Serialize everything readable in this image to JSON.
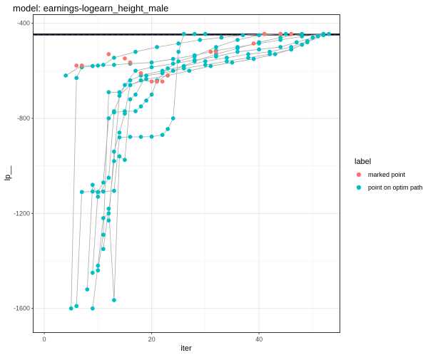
{
  "chart_data": {
    "type": "scatter",
    "title": "model: earnings-logearn_height_male",
    "xlabel": "iter",
    "ylabel": "lp__",
    "xlim": [
      -2,
      55
    ],
    "ylim": [
      -1700,
      -365
    ],
    "x_ticks": [
      0,
      20,
      40
    ],
    "y_ticks": [
      -400,
      -800,
      -1200,
      -1600
    ],
    "grid": true,
    "reference_lines": [
      {
        "y": -445,
        "color": "#000000",
        "style": "solid"
      },
      {
        "y": -447,
        "color": "#1a1aa8",
        "style": "dashed"
      },
      {
        "y": -449,
        "color": "#000000",
        "style": "solid"
      }
    ],
    "legend": {
      "title": "label",
      "position": "right",
      "entries": [
        {
          "label": "marked point",
          "color": "#F8766D"
        },
        {
          "label": "point on optim path",
          "color": "#00BFC4"
        }
      ]
    },
    "paths": [
      [
        [
          4,
          -620
        ],
        [
          7,
          -578
        ],
        [
          10,
          -578
        ],
        [
          13,
          -575
        ],
        [
          16,
          -570
        ],
        [
          20,
          -565
        ],
        [
          24,
          -550
        ],
        [
          28,
          -535
        ],
        [
          32,
          -515
        ],
        [
          36,
          -500
        ],
        [
          40,
          -485
        ],
        [
          44,
          -470
        ],
        [
          48,
          -455
        ],
        [
          52,
          -445
        ]
      ],
      [
        [
          5,
          -1600
        ],
        [
          6,
          -630
        ],
        [
          7,
          -585
        ],
        [
          9,
          -580
        ],
        [
          11,
          -575
        ],
        [
          13,
          -545
        ],
        [
          17,
          -520
        ],
        [
          21,
          -500
        ],
        [
          25,
          -485
        ],
        [
          29,
          -470
        ],
        [
          33,
          -460
        ],
        [
          37,
          -450
        ],
        [
          41,
          -445
        ],
        [
          45,
          -445
        ]
      ],
      [
        [
          6,
          -1590
        ],
        [
          7,
          -1110
        ],
        [
          9,
          -1108
        ],
        [
          11,
          -1108
        ],
        [
          13,
          -1105
        ],
        [
          14,
          -880
        ],
        [
          16,
          -878
        ],
        [
          18,
          -878
        ],
        [
          20,
          -877
        ],
        [
          22,
          -870
        ],
        [
          23,
          -845
        ],
        [
          24,
          -800
        ],
        [
          25,
          -520
        ],
        [
          26,
          -445
        ],
        [
          28,
          -445
        ],
        [
          30,
          -445
        ]
      ],
      [
        [
          8,
          -1520
        ],
        [
          9,
          -1080
        ],
        [
          10,
          -1130
        ],
        [
          12,
          -1050
        ],
        [
          13,
          -775
        ],
        [
          15,
          -770
        ],
        [
          17,
          -770
        ],
        [
          18,
          -750
        ],
        [
          19,
          -725
        ],
        [
          20,
          -700
        ],
        [
          21,
          -640
        ],
        [
          23,
          -590
        ],
        [
          25,
          -560
        ],
        [
          28,
          -540
        ],
        [
          32,
          -500
        ],
        [
          36,
          -470
        ],
        [
          40,
          -450
        ],
        [
          44,
          -445
        ]
      ],
      [
        [
          9,
          -1600
        ],
        [
          10,
          -1420
        ],
        [
          11,
          -1220
        ],
        [
          12,
          -1200
        ],
        [
          13,
          -980
        ],
        [
          14,
          -705
        ],
        [
          16,
          -660
        ],
        [
          18,
          -640
        ],
        [
          21,
          -645
        ],
        [
          24,
          -600
        ],
        [
          28,
          -560
        ],
        [
          32,
          -530
        ],
        [
          36,
          -505
        ],
        [
          40,
          -480
        ],
        [
          44,
          -460
        ],
        [
          48,
          -445
        ],
        [
          53,
          -445
        ]
      ],
      [
        [
          9,
          -1450
        ],
        [
          10,
          -1110
        ],
        [
          11,
          -1070
        ],
        [
          12,
          -800
        ],
        [
          13,
          -770
        ],
        [
          15,
          -660
        ],
        [
          17,
          -600
        ],
        [
          20,
          -585
        ],
        [
          24,
          -570
        ],
        [
          28,
          -555
        ],
        [
          32,
          -540
        ],
        [
          36,
          -520
        ],
        [
          40,
          -510
        ],
        [
          44,
          -500
        ],
        [
          47,
          -480
        ],
        [
          50,
          -460
        ],
        [
          52,
          -445
        ]
      ],
      [
        [
          10,
          -1440
        ],
        [
          11,
          -1290
        ],
        [
          12,
          -690
        ],
        [
          14,
          -690
        ],
        [
          16,
          -640
        ],
        [
          18,
          -620
        ],
        [
          22,
          -600
        ],
        [
          26,
          -580
        ],
        [
          30,
          -560
        ],
        [
          34,
          -545
        ],
        [
          38,
          -530
        ],
        [
          42,
          -520
        ],
        [
          46,
          -500
        ],
        [
          49,
          -475
        ],
        [
          51,
          -455
        ]
      ],
      [
        [
          11,
          -1350
        ],
        [
          12,
          -1180
        ],
        [
          13,
          -1565
        ],
        [
          14,
          -960
        ],
        [
          15,
          -975
        ],
        [
          16,
          -720
        ],
        [
          17,
          -700
        ],
        [
          19,
          -620
        ],
        [
          22,
          -610
        ],
        [
          26,
          -590
        ],
        [
          30,
          -575
        ],
        [
          34,
          -560
        ],
        [
          38,
          -545
        ],
        [
          42,
          -530
        ],
        [
          46,
          -510
        ],
        [
          49,
          -480
        ],
        [
          52,
          -450
        ]
      ],
      [
        [
          12,
          -1230
        ],
        [
          13,
          -940
        ],
        [
          14,
          -860
        ],
        [
          15,
          -780
        ],
        [
          16,
          -660
        ],
        [
          19,
          -635
        ],
        [
          23,
          -620
        ],
        [
          27,
          -600
        ],
        [
          31,
          -580
        ],
        [
          35,
          -565
        ],
        [
          39,
          -550
        ],
        [
          43,
          -530
        ],
        [
          46,
          -510
        ],
        [
          48,
          -490
        ]
      ]
    ],
    "marked_points": [
      [
        6,
        -578
      ],
      [
        7,
        -578
      ],
      [
        12,
        -530
      ],
      [
        15,
        -548
      ],
      [
        16,
        -565
      ],
      [
        18,
        -610
      ],
      [
        20,
        -645
      ],
      [
        21,
        -645
      ],
      [
        22,
        -645
      ],
      [
        23,
        -620
      ],
      [
        31,
        -520
      ],
      [
        32,
        -520
      ],
      [
        39,
        -485
      ],
      [
        41,
        -445
      ],
      [
        44,
        -445
      ],
      [
        46,
        -445
      ]
    ]
  }
}
